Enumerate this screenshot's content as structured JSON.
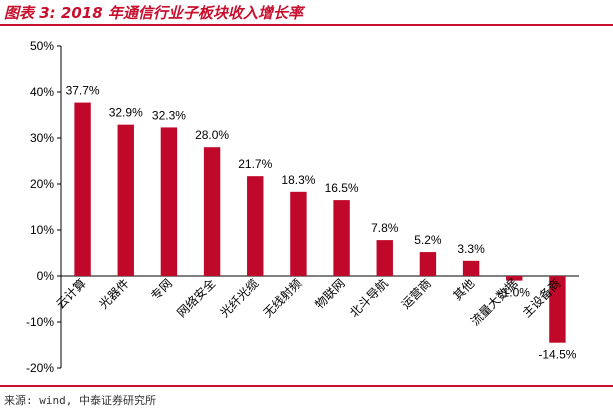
{
  "header": {
    "title": "图表 3: 2018 年通信行业子板块收入增长率"
  },
  "footer": {
    "source": "来源: wind, 中泰证券研究所"
  },
  "colors": {
    "accent": "#c8102e",
    "bar": "#c0092a"
  },
  "chart_data": {
    "type": "bar",
    "categories": [
      "云计算",
      "光器件",
      "专网",
      "网络安全",
      "光纤光缆",
      "无线射频",
      "物联网",
      "北斗导航",
      "运营商",
      "其他",
      "流量大数据",
      "主设备商"
    ],
    "values": [
      37.7,
      32.9,
      32.3,
      28.0,
      21.7,
      18.3,
      16.5,
      7.8,
      5.2,
      3.3,
      -1.0,
      -14.5
    ],
    "data_labels": [
      "37.7%",
      "32.9%",
      "32.3%",
      "28.0%",
      "21.7%",
      "18.3%",
      "16.5%",
      "7.8%",
      "5.2%",
      "3.3%",
      "-1.0%",
      "-14.5%"
    ],
    "ylim": [
      -20,
      50
    ],
    "yticks": [
      50,
      40,
      30,
      20,
      10,
      0,
      -10,
      -20
    ],
    "ytick_labels": [
      "50%",
      "40%",
      "30%",
      "20%",
      "10%",
      "0%",
      "-10%",
      "-20%"
    ],
    "title": "",
    "xlabel": "",
    "ylabel": "",
    "grid": false,
    "legend": "none"
  }
}
